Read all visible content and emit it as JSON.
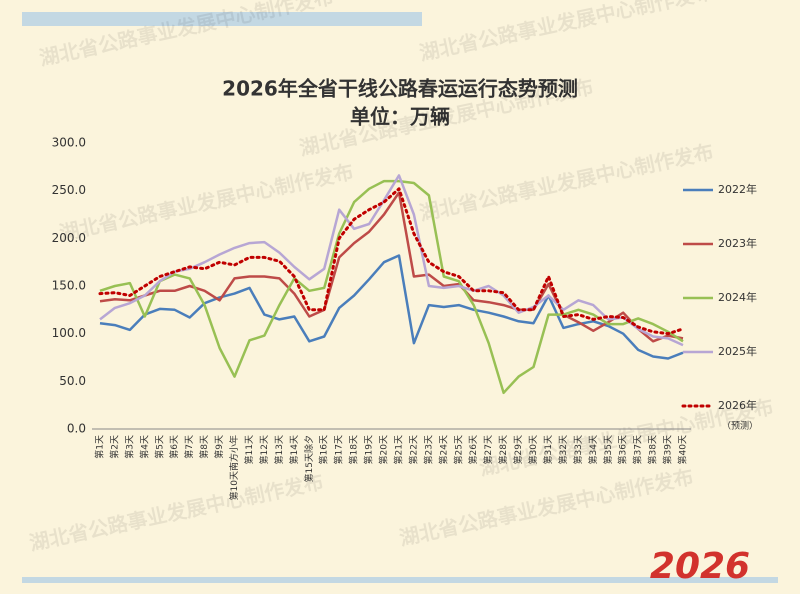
{
  "chart_data": {
    "type": "line",
    "title": "2026年全省干线公路春运运行态势预测",
    "subtitle": "单位：万辆",
    "watermark": "湖北省公路事业发展中心制作发布",
    "logo": "2026",
    "note": "（预测）",
    "categories": [
      "第1天",
      "第2天",
      "第3天",
      "第4天",
      "第5天",
      "第6天",
      "第7天",
      "第8天",
      "第9天",
      "第10天南方小年",
      "第11天",
      "第12天",
      "第13天",
      "第14天",
      "第15天除夕",
      "第16天",
      "第17天",
      "第18天",
      "第19天",
      "第20天",
      "第21天",
      "第22天",
      "第23天",
      "第24天",
      "第25天",
      "第26天",
      "第27天",
      "第28天",
      "第29天",
      "第30天",
      "第31天",
      "第32天",
      "第33天",
      "第34天",
      "第35天",
      "第36天",
      "第37天",
      "第38天",
      "第39天",
      "第40天"
    ],
    "ylim": [
      0,
      300
    ],
    "yticks": [
      {
        "value": 0,
        "label": "0.0"
      },
      {
        "value": 50,
        "label": "50.0"
      },
      {
        "value": 100,
        "label": "100.0"
      },
      {
        "value": 150,
        "label": "150.0"
      },
      {
        "value": 200,
        "label": "200.0"
      },
      {
        "value": 250,
        "label": "250.0"
      },
      {
        "value": 300,
        "label": "300.0"
      }
    ],
    "grid": false,
    "series": [
      {
        "name": "2022年",
        "color": "#4a7ebb",
        "dash": false,
        "values": [
          111,
          109,
          104,
          120,
          126,
          125,
          117,
          132,
          138,
          142,
          148,
          120,
          115,
          118,
          92,
          97,
          127,
          140,
          157,
          175,
          182,
          90,
          130,
          128,
          130,
          125,
          122,
          118,
          113,
          111,
          140,
          106,
          110,
          113,
          108,
          100,
          83,
          76,
          74,
          80
        ]
      },
      {
        "name": "2023年",
        "color": "#be4b48",
        "dash": false,
        "values": [
          134,
          136,
          135,
          140,
          145,
          145,
          150,
          145,
          135,
          158,
          160,
          160,
          158,
          142,
          118,
          125,
          180,
          195,
          207,
          225,
          248,
          160,
          162,
          150,
          152,
          135,
          133,
          130,
          125,
          125,
          152,
          120,
          112,
          103,
          112,
          122,
          105,
          92,
          98,
          95
        ]
      },
      {
        "name": "2024年",
        "color": "#98c054",
        "dash": false,
        "values": [
          145,
          150,
          153,
          118,
          155,
          162,
          158,
          130,
          85,
          55,
          93,
          98,
          130,
          158,
          145,
          148,
          205,
          238,
          252,
          260,
          260,
          258,
          245,
          160,
          155,
          130,
          90,
          38,
          55,
          65,
          120,
          120,
          125,
          120,
          110,
          110,
          116,
          110,
          102,
          92
        ]
      },
      {
        "name": "2025年",
        "color": "#b7a6d4",
        "dash": false,
        "values": [
          115,
          127,
          132,
          140,
          155,
          165,
          168,
          175,
          183,
          190,
          195,
          196,
          185,
          170,
          157,
          168,
          230,
          210,
          215,
          240,
          266,
          225,
          150,
          148,
          150,
          145,
          150,
          140,
          122,
          128,
          140,
          125,
          135,
          130,
          115,
          117,
          105,
          97,
          95,
          88
        ]
      },
      {
        "name": "2026年",
        "color": "#c00000",
        "dash": true,
        "values": [
          142,
          143,
          140,
          150,
          160,
          165,
          170,
          168,
          175,
          172,
          180,
          180,
          176,
          160,
          125,
          125,
          200,
          220,
          230,
          238,
          252,
          205,
          175,
          165,
          160,
          145,
          145,
          143,
          125,
          125,
          160,
          118,
          120,
          115,
          118,
          117,
          107,
          102,
          100,
          105
        ]
      }
    ]
  }
}
